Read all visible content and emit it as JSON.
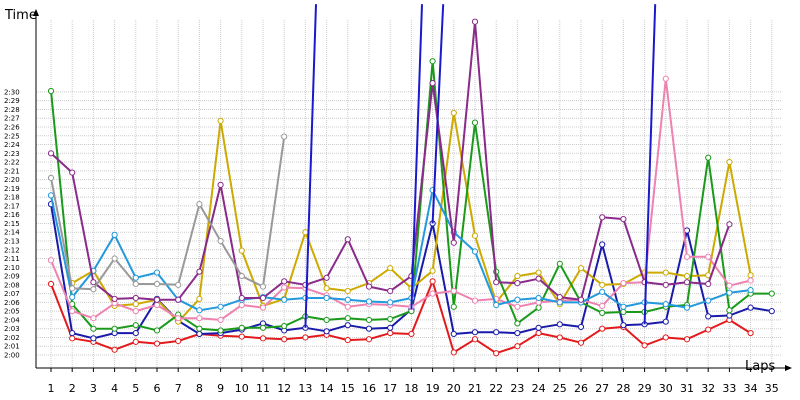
{
  "chart_data": {
    "type": "line",
    "ylabel": "Time",
    "xlabel": "Laps",
    "x": [
      1,
      2,
      3,
      4,
      5,
      6,
      7,
      8,
      9,
      10,
      11,
      12,
      13,
      14,
      15,
      16,
      17,
      18,
      19,
      20,
      21,
      22,
      23,
      24,
      25,
      26,
      27,
      28,
      29,
      30,
      31,
      32,
      33,
      34,
      35
    ],
    "xticks": [
      "1",
      "2",
      "3",
      "4",
      "5",
      "6",
      "7",
      "8",
      "9",
      "10",
      "11",
      "12",
      "13",
      "14",
      "15",
      "16",
      "17",
      "18",
      "19",
      "20",
      "21",
      "22",
      "23",
      "24",
      "25",
      "26",
      "27",
      "28",
      "29",
      "30",
      "31",
      "32",
      "33",
      "34",
      "35"
    ],
    "yticks": [
      "2:00",
      "2:01",
      "2:02",
      "2:03",
      "2:04",
      "2:05",
      "2:06",
      "2:07",
      "2:08",
      "2:09",
      "2:10",
      "2:11",
      "2:12",
      "2:13",
      "2:14",
      "2:15",
      "2:16",
      "2:17",
      "2:18",
      "2:19",
      "2:20",
      "2:21",
      "2:22",
      "2:23",
      "2:24",
      "2:25",
      "2:26",
      "2:27",
      "2:28",
      "2:29",
      "2:30"
    ],
    "ylim": [
      119,
      152
    ],
    "grid": true,
    "series": [
      {
        "color": "#e31a1c",
        "values": [
          128.1,
          121.9,
          121.5,
          120.6,
          121.5,
          121.3,
          121.6,
          122.4,
          122.2,
          122.1,
          121.9,
          121.8,
          122.0,
          122.3,
          121.7,
          121.8,
          122.5,
          122.4,
          128.4,
          120.3,
          121.8,
          120.2,
          121.0,
          122.5,
          122.0,
          121.4,
          123.0,
          123.2,
          121.1,
          122.0,
          121.8,
          122.9,
          124.0,
          122.5,
          null
        ]
      },
      {
        "color": "#1a1aaa",
        "values": [
          137.2,
          122.5,
          121.9,
          122.5,
          122.5,
          126.4,
          123.9,
          122.4,
          122.5,
          122.9,
          123.6,
          122.8,
          123.1,
          122.7,
          123.4,
          123.0,
          123.1,
          125.2,
          135.0,
          122.4,
          122.6,
          122.6,
          122.5,
          123.1,
          123.5,
          123.2,
          132.6,
          123.4,
          123.5,
          123.8,
          134.2,
          124.4,
          124.5,
          125.4,
          125.0
        ]
      },
      {
        "color": "#ccaa00",
        "values": [
          null,
          128.2,
          129.6,
          125.6,
          125.8,
          126.3,
          123.8,
          126.4,
          146.7,
          131.9,
          125.6,
          126.4,
          134.0,
          127.6,
          127.3,
          128.2,
          129.9,
          127.6,
          129.6,
          147.6,
          133.6,
          126.0,
          129.0,
          129.4,
          125.8,
          129.9,
          128.0,
          128.1,
          129.4,
          129.4,
          129.0,
          129.1,
          142.0,
          129.1,
          null
        ]
      },
      {
        "color": "#1a9a1a",
        "values": [
          150.1,
          125.8,
          123.0,
          123.0,
          123.4,
          122.8,
          124.6,
          123.0,
          122.8,
          123.1,
          123.1,
          123.3,
          124.4,
          124.0,
          124.2,
          124.0,
          124.1,
          125.0,
          153.5,
          125.5,
          146.5,
          129.5,
          123.6,
          125.4,
          130.4,
          126.0,
          124.8,
          124.9,
          124.9,
          125.5,
          125.7,
          142.5,
          125.1,
          127.0,
          127.0
        ]
      },
      {
        "color": "#ee82b0",
        "values": [
          130.8,
          125.0,
          124.2,
          125.9,
          125.0,
          125.7,
          124.2,
          124.2,
          124.0,
          125.7,
          125.4,
          127.7,
          127.6,
          126.8,
          125.5,
          125.8,
          125.7,
          125.5,
          127.0,
          127.3,
          126.2,
          126.4,
          125.5,
          126.0,
          126.2,
          126.3,
          125.6,
          128.2,
          128.3,
          151.5,
          131.2,
          131.2,
          127.9,
          128.5,
          null
        ]
      },
      {
        "color": "#2299dd",
        "values": [
          138.2,
          126.6,
          129.6,
          133.7,
          128.8,
          129.4,
          126.3,
          125.1,
          125.5,
          126.3,
          126.6,
          126.3,
          126.5,
          126.5,
          126.3,
          126.1,
          126.0,
          126.5,
          138.8,
          134.0,
          131.8,
          125.7,
          126.3,
          126.5,
          126.0,
          126.0,
          127.2,
          125.5,
          126.0,
          125.8,
          125.4,
          126.2,
          127.1,
          127.4,
          null
        ]
      },
      {
        "color": "#8a2a8a",
        "values": [
          143.0,
          140.8,
          128.3,
          126.4,
          126.5,
          126.3,
          126.3,
          129.5,
          139.4,
          126.5,
          126.5,
          128.4,
          128.0,
          128.8,
          133.2,
          127.8,
          127.3,
          129.0,
          151.0,
          132.8,
          158.0,
          128.3,
          128.2,
          128.7,
          126.6,
          126.3,
          135.7,
          135.5,
          128.3,
          128.0,
          128.3,
          128.1,
          134.9,
          null,
          null
        ]
      },
      {
        "color": "#999999",
        "values": [
          140.2,
          127.6,
          127.5,
          131.0,
          128.1,
          128.1,
          128.0,
          137.2,
          133.0,
          129.0,
          127.8,
          144.9,
          null,
          null,
          null,
          null,
          null,
          null,
          null,
          null,
          null,
          null,
          null,
          null,
          null,
          null,
          null,
          null,
          null,
          null,
          null,
          null,
          null,
          null,
          null
        ]
      },
      {
        "color": "#1a1acc",
        "values": [
          null,
          null,
          null,
          null,
          null,
          null,
          null,
          null,
          null,
          null,
          null,
          null,
          null,
          null,
          null,
          null,
          null,
          null,
          null,
          null,
          null,
          null,
          null,
          null,
          null,
          null,
          null,
          null,
          null,
          null,
          null,
          null,
          null,
          null,
          null
        ]
      }
    ]
  }
}
